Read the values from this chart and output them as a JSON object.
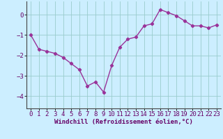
{
  "x": [
    0,
    1,
    2,
    3,
    4,
    5,
    6,
    7,
    8,
    9,
    10,
    11,
    12,
    13,
    14,
    15,
    16,
    17,
    18,
    19,
    20,
    21,
    22,
    23
  ],
  "y": [
    -1.0,
    -1.7,
    -1.8,
    -1.9,
    -2.1,
    -2.4,
    -2.7,
    -3.5,
    -3.3,
    -3.8,
    -2.5,
    -1.6,
    -1.2,
    -1.1,
    -0.55,
    -0.45,
    0.25,
    0.1,
    -0.05,
    -0.3,
    -0.55,
    -0.55,
    -0.65,
    -0.5
  ],
  "line_color": "#993399",
  "marker": "D",
  "marker_size": 2.2,
  "bg_color": "#cceeff",
  "grid_color": "#99cccc",
  "axis_color": "#666666",
  "xlabel": "Windchill (Refroidissement éolien,°C)",
  "ylabel": "",
  "xlim": [
    -0.5,
    23.5
  ],
  "ylim": [
    -4.6,
    0.65
  ],
  "yticks": [
    0,
    -1,
    -2,
    -3,
    -4
  ],
  "xticks": [
    0,
    1,
    2,
    3,
    4,
    5,
    6,
    7,
    8,
    9,
    10,
    11,
    12,
    13,
    14,
    15,
    16,
    17,
    18,
    19,
    20,
    21,
    22,
    23
  ],
  "xlabel_fontsize": 6.5,
  "tick_fontsize": 6.5,
  "line_width": 1.0
}
